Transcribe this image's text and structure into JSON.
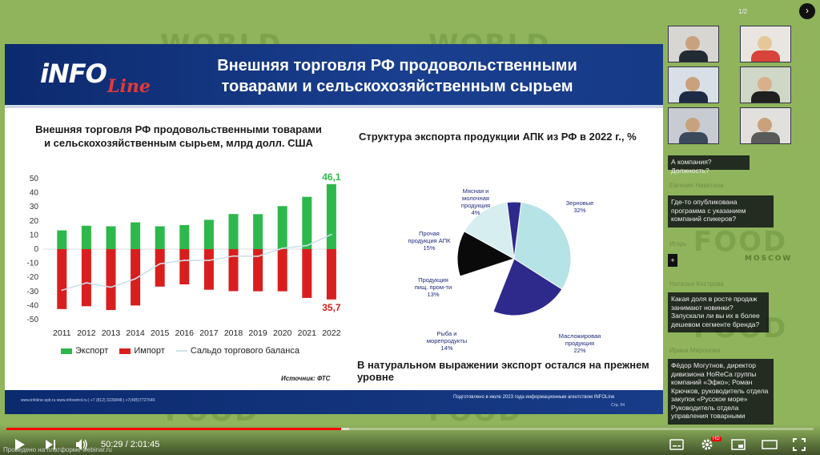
{
  "background": {
    "color": "#8fb45c",
    "watermarks": [
      "WORLD",
      "WORLD",
      "FOOD",
      "FOOD",
      "FOOD",
      "FOOD"
    ],
    "watermark_sub": "MOSCOW"
  },
  "player": {
    "page_indicator": "1/2",
    "time": "50:29 / 2:01:45",
    "progress_fraction": 0.415,
    "buffer_fraction": 0.425,
    "corner_text": "Проведено на платформе webinar.ru",
    "hd_badge": "HD",
    "colors": {
      "progress": "#ff0000"
    }
  },
  "slide": {
    "logo": "iNFO",
    "logo_sub": "Line",
    "title_line1": "Внешняя торговля РФ продовольственными",
    "title_line2": "товарами и сельскохозяйственным сырьем",
    "left_title_line1": "Внешняя торговля РФ продовольственными товарами",
    "left_title_line2": "и сельскохозяйственным сырьем, млрд долл. США",
    "right_title": "Структура экспорта продукции АПК из РФ в 2022 г., %",
    "legend": [
      "Экспорт",
      "Импорт",
      "Сальдо торгового баланса"
    ],
    "source": "Источник: ФТС",
    "note": "В натуральном выражении экспорт остался на прежнем уровне",
    "footer_left": "www.infoline-spb.ru  www.infovetrol.ru  |  +7 (812) 3226848  |  +7(495)7727640",
    "footer_right": "Подготовлено в июле 2023 года информационным агентством INFOLine",
    "footer_page": "Стр. 04"
  },
  "chart_data": [
    {
      "type": "bar",
      "title": "Внешняя торговля РФ продовольственными товарами и сельскохозяйственным сырьем, млрд долл. США",
      "categories": [
        "2011",
        "2012",
        "2013",
        "2014",
        "2015",
        "2016",
        "2017",
        "2018",
        "2019",
        "2020",
        "2021",
        "2022"
      ],
      "series": [
        {
          "name": "Экспорт",
          "values": [
            13.3,
            16.6,
            16.2,
            19.0,
            16.2,
            17.1,
            20.8,
            24.9,
            24.8,
            30.5,
            37.1,
            46.1
          ],
          "color": "#2db84b"
        },
        {
          "name": "Импорт",
          "values": [
            -42.5,
            -40.5,
            -43.2,
            -40.0,
            -26.6,
            -25.0,
            -28.8,
            -29.8,
            -29.9,
            -29.9,
            -34.6,
            -35.7
          ],
          "color": "#d91e1e"
        },
        {
          "name": "Сальдо торгового баланса",
          "values": [
            -29.2,
            -23.9,
            -27.0,
            -21.0,
            -10.4,
            -7.9,
            -8.0,
            -4.9,
            -5.1,
            0.6,
            2.5,
            10.4
          ],
          "color": "#cde0e8"
        }
      ],
      "data_labels": [
        {
          "category": "2022",
          "value": "46,1",
          "color": "#2db84b"
        },
        {
          "category": "2022",
          "value": "35,7",
          "color": "#d91e1e"
        }
      ],
      "ylim": [
        -50,
        50
      ],
      "yticks": [
        50,
        40,
        30,
        20,
        10,
        0,
        -10,
        -20,
        -30,
        -40,
        -50
      ],
      "grid": false,
      "legend_position": "bottom"
    },
    {
      "type": "pie",
      "title": "Структура экспорта продукции АПК из РФ в 2022 г., %",
      "slices": [
        {
          "label": "Зерновые",
          "value": 32,
          "color": "#b6e3e6"
        },
        {
          "label": "Масложировая продукция",
          "value": 22,
          "color": "#2e2a8c"
        },
        {
          "label": "Рыба и морепродукты",
          "value": 14,
          "color": "#ffffff"
        },
        {
          "label": "Продукция пищ. пром-ти",
          "value": 13,
          "color": "#0a0a0a"
        },
        {
          "label": "Прочая продукция АПК",
          "value": 15,
          "color": "#d6eef0"
        },
        {
          "label": "Мясная и молочная продукция",
          "value": 4,
          "color": "#2e2a8c"
        }
      ],
      "label_lines": [
        [
          "Зерновые",
          "32%"
        ],
        [
          "Масложировая",
          "продукция",
          "22%"
        ],
        [
          "Рыба и",
          "морепродукты",
          "14%"
        ],
        [
          "Продукция",
          "пищ. пром-ти",
          "13%"
        ],
        [
          "Прочая",
          "продукция АПК",
          "15%"
        ],
        [
          "Мясная и",
          "молочная",
          "продукция",
          "4%"
        ]
      ]
    }
  ],
  "chat": [
    {
      "name": "",
      "text": "А компания? Должность?"
    },
    {
      "name": "Евгения Никитина",
      "text": "Где-то опубликована программа с указанием компаний спикеров?"
    },
    {
      "name": "Игорь",
      "text": "+"
    },
    {
      "name": "Наталья Кострова",
      "text": "Какая доля в росте продаж занимают новинки? Запускали ли вы их в более дешевом сегменте бренда?"
    },
    {
      "name": "Ирина Миронова",
      "text": "Фёдор Могутнов, директор дивизиона HoReCa группы компаний «Эфко»; Роман Крючков, руководитель отдела закупок «Русское море» Руководитель отдела управления товарными"
    }
  ]
}
